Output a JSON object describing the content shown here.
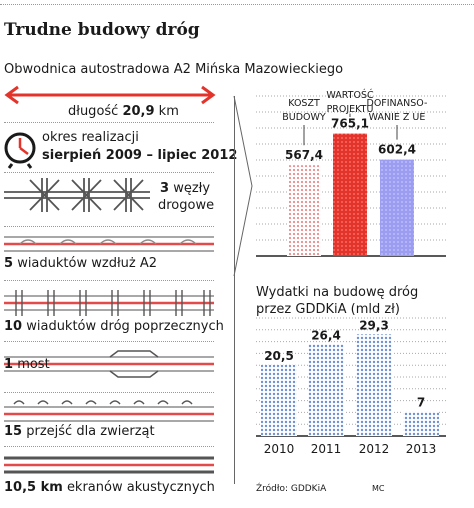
{
  "header": {
    "title": "Trudne budowy dróg",
    "subtitle": "Obwodnica autostradowa A2 Mińska Mazowieckiego"
  },
  "facts": {
    "length_label": "długość",
    "length_value": "20,9",
    "length_unit": "km",
    "period_label": "okres realizacji",
    "period_value": "sierpień 2009 – lipiec 2012",
    "junctions_num": "3",
    "junctions_text1": "węzły",
    "junctions_text2": "drogowe",
    "viaducts_a2_num": "5",
    "viaducts_a2_text": "wiaduktów wzdłuż A2",
    "viaducts_cross_num": "10",
    "viaducts_cross_text": "wiaduktów dróg poprzecznych",
    "bridge_num": "1",
    "bridge_text": "most",
    "animal_num": "15",
    "animal_text": "przejść dla zwierząt",
    "screens_num": "10,5 km",
    "screens_text": "ekranów akustycznych"
  },
  "footer": {
    "source": "Źródło: GDDKiA",
    "author": "MC"
  },
  "colors": {
    "red": "#e3342b",
    "light_red": "#f0a0a6",
    "purple": "#9c9cf0",
    "blue": "#6e90d8",
    "road_red": "#e34b4b",
    "road_gray": "#8c8c8c"
  },
  "chart_data": [
    {
      "type": "bar",
      "title": "",
      "categories": [
        "KOSZT BUDOWY",
        "WARTOŚĆ PROJEKTU",
        "DOFINANSOWANIE Z UE"
      ],
      "category_lines": [
        [
          "KOSZT",
          "BUDOWY"
        ],
        [
          "WARTOŚĆ",
          "PROJEKTU"
        ],
        [
          "DOFINANSO-",
          "WANIE Z UE"
        ]
      ],
      "values": [
        567.4,
        765.1,
        602.4
      ],
      "value_labels": [
        "567,4",
        "765,1",
        "602,4"
      ],
      "colors": [
        "#f0a0a6",
        "#e3342b",
        "#9c9cf0"
      ],
      "ylim": [
        0,
        1000
      ],
      "grid": true
    },
    {
      "type": "bar",
      "title": "Wydatki na budowę dróg przez GDDKiA (mld zł)",
      "title_lines": [
        "Wydatki na budowę dróg",
        "przez GDDKiA (mld zł)"
      ],
      "categories": [
        "2010",
        "2011",
        "2012",
        "2013"
      ],
      "values": [
        20.5,
        26.4,
        29.3,
        7
      ],
      "value_labels": [
        "20,5",
        "26,4",
        "29,3",
        "7"
      ],
      "color": "#6e90d8",
      "ylim": [
        0,
        34
      ],
      "grid": true
    }
  ]
}
